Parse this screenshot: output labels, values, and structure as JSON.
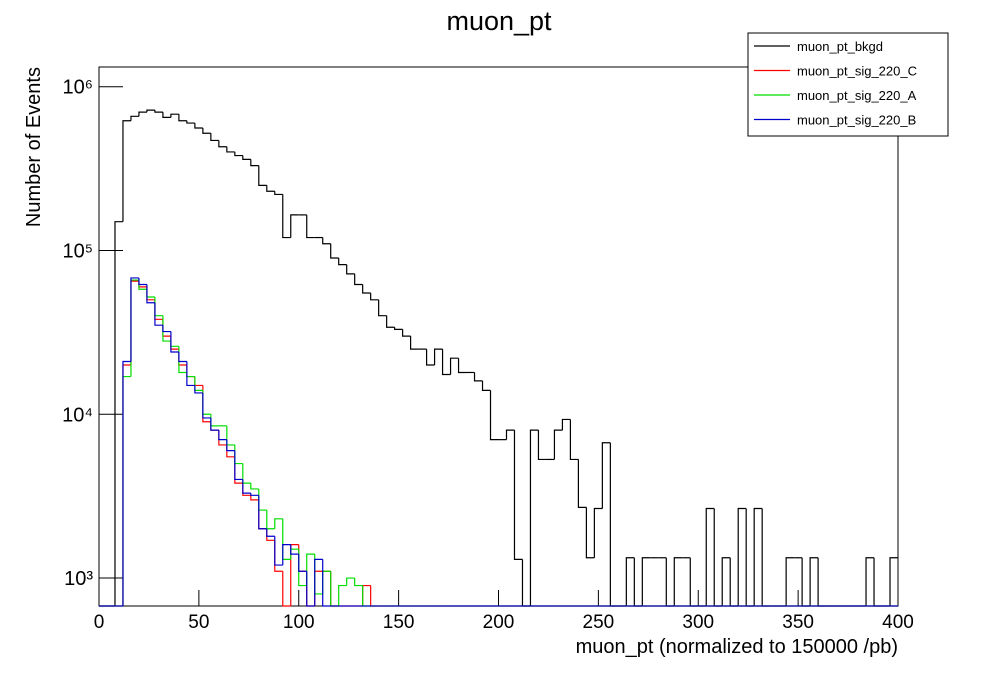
{
  "chart_data": {
    "type": "histogram",
    "title": "muon_pt",
    "xlabel": "muon_pt (normalized to 150000 /pb)",
    "ylabel": "Number of Events",
    "ylog": true,
    "xlim": [
      0,
      400
    ],
    "ylim": [
      675,
      1320000
    ],
    "xticks": [
      0,
      50,
      100,
      150,
      200,
      250,
      300,
      350,
      400
    ],
    "yticks": [
      {
        "value": 1000,
        "label": "10³"
      },
      {
        "value": 10000,
        "label": "10⁴"
      },
      {
        "value": 100000,
        "label": "10⁵"
      },
      {
        "value": 1000000,
        "label": "10⁶"
      }
    ],
    "bins": [
      0,
      4,
      8,
      12,
      16,
      20,
      24,
      28,
      32,
      36,
      40,
      44,
      48,
      52,
      56,
      60,
      64,
      68,
      72,
      76,
      80,
      84,
      88,
      92,
      96,
      100,
      104,
      108,
      112,
      116,
      120,
      124,
      128,
      132,
      136,
      140,
      144,
      148,
      152,
      156,
      160,
      164,
      168,
      172,
      176,
      180,
      184,
      188,
      192,
      196,
      200,
      204,
      208,
      212,
      216,
      220,
      224,
      228,
      232,
      236,
      240,
      244,
      248,
      252,
      256,
      260,
      264,
      268,
      272,
      276,
      280,
      284,
      288,
      292,
      296,
      300,
      304,
      308,
      312,
      316,
      320,
      324,
      328,
      332,
      336,
      340,
      344,
      348,
      352,
      356,
      360,
      364,
      368,
      372,
      376,
      380,
      384,
      388,
      392,
      396,
      400
    ],
    "series": [
      {
        "name": "muon_pt_bkgd",
        "color": "#000000",
        "values": [
          0,
          0,
          150000,
          620000,
          660000,
          700000,
          720000,
          700000,
          650000,
          680000,
          620000,
          600000,
          560000,
          520000,
          470000,
          430000,
          400000,
          380000,
          360000,
          330000,
          250000,
          230000,
          220000,
          120000,
          165000,
          165000,
          120000,
          120000,
          110000,
          90000,
          82000,
          72000,
          62000,
          55000,
          50000,
          40000,
          34000,
          33000,
          30000,
          25000,
          25000,
          20000,
          25000,
          17500,
          22000,
          18000,
          18000,
          16000,
          14000,
          7000,
          7000,
          8000,
          1300,
          0,
          8000,
          5300,
          5300,
          8000,
          9300,
          5300,
          2700,
          1330,
          2660,
          6700,
          0,
          0,
          1330,
          0,
          1330,
          1330,
          1330,
          0,
          1330,
          1330,
          0,
          0,
          2660,
          0,
          1330,
          0,
          2660,
          0,
          2660,
          0,
          0,
          0,
          1330,
          1330,
          0,
          1330,
          0,
          0,
          0,
          0,
          0,
          0,
          1330,
          0,
          0,
          1330
        ]
      },
      {
        "name": "muon_pt_sig_220_C",
        "color": "#ff0000",
        "values": [
          0,
          0,
          0,
          20000,
          65000,
          60000,
          50000,
          38000,
          30000,
          25000,
          20000,
          17000,
          15000,
          9000,
          8000,
          6500,
          5500,
          3800,
          3200,
          3000,
          2000,
          1700,
          1100,
          0,
          1600,
          1100,
          0,
          1100,
          1100,
          0,
          0,
          0,
          0,
          900,
          0,
          0,
          0,
          0,
          0,
          0,
          0,
          0,
          0,
          0,
          0,
          0,
          0,
          0,
          0,
          0,
          0,
          0,
          0,
          0,
          0,
          0,
          0,
          0,
          0,
          0,
          0,
          0,
          0,
          0,
          0,
          0,
          0,
          0,
          0,
          0,
          0,
          0,
          0,
          0,
          0,
          0,
          0,
          0,
          0,
          0,
          0,
          0,
          0,
          0,
          0,
          0,
          0,
          0,
          0,
          0,
          0,
          0,
          0,
          0,
          0,
          0,
          0,
          0,
          0,
          0
        ]
      },
      {
        "name": "muon_pt_sig_220_A",
        "color": "#00dd00",
        "values": [
          0,
          0,
          0,
          17000,
          66000,
          58000,
          52000,
          40000,
          28000,
          26000,
          18000,
          17000,
          14000,
          10000,
          8500,
          8500,
          6500,
          5000,
          3800,
          3500,
          2600,
          2000,
          2300,
          1300,
          1500,
          900,
          1400,
          800,
          1100,
          0,
          900,
          1000,
          900,
          0,
          0,
          0,
          0,
          0,
          0,
          0,
          0,
          0,
          0,
          0,
          0,
          0,
          0,
          0,
          0,
          0,
          0,
          0,
          0,
          0,
          0,
          0,
          0,
          0,
          0,
          0,
          0,
          0,
          0,
          0,
          0,
          0,
          0,
          0,
          0,
          0,
          0,
          0,
          0,
          0,
          0,
          0,
          0,
          0,
          0,
          0,
          0,
          0,
          0,
          0,
          0,
          0,
          0,
          0,
          0,
          0,
          0,
          0,
          0,
          0,
          0,
          0,
          0,
          0,
          0,
          0
        ]
      },
      {
        "name": "muon_pt_sig_220_B",
        "color": "#0000cc",
        "values": [
          0,
          0,
          0,
          21000,
          68000,
          62000,
          48000,
          35000,
          32000,
          24000,
          21000,
          15000,
          13500,
          9500,
          8000,
          7000,
          6000,
          4000,
          3300,
          3200,
          2000,
          1800,
          1200,
          1600,
          1400,
          1100,
          0,
          1300,
          0,
          0,
          0,
          0,
          0,
          0,
          0,
          0,
          0,
          0,
          0,
          0,
          0,
          0,
          0,
          0,
          0,
          0,
          0,
          0,
          0,
          0,
          0,
          0,
          0,
          0,
          0,
          0,
          0,
          0,
          0,
          0,
          0,
          0,
          0,
          0,
          0,
          0,
          0,
          0,
          0,
          0,
          0,
          0,
          0,
          0,
          0,
          0,
          0,
          0,
          0,
          0,
          0,
          0,
          0,
          0,
          0,
          0,
          0,
          0,
          0,
          0,
          0,
          0,
          0,
          0,
          0,
          0,
          0,
          0,
          0,
          0
        ]
      }
    ]
  }
}
